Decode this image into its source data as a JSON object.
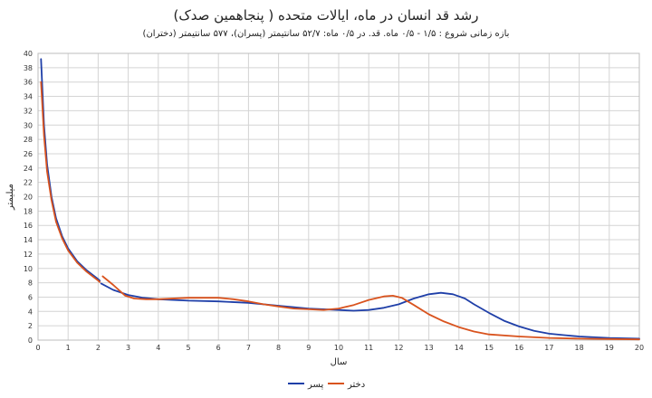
{
  "chart_data": {
    "type": "line",
    "title": "رشد قد انسان در ماه، ایالات متحده ( پنجاهمین صدک)",
    "subtitle": "بازه زمانی شروع : ۱/۵ - ۰/۵ ماه. قد. در ۰/۵ ماه: ۵۲/۷ سانتیمتر (پسران)، ۵۷۷ سانتیمتر (دختران)",
    "xlabel": "سال",
    "ylabel": "میلیمتر",
    "xlim": [
      0,
      20
    ],
    "ylim": [
      0,
      40
    ],
    "x_ticks": [
      "0",
      "1",
      "2",
      "3",
      "4",
      "5",
      "6",
      "7",
      "8",
      "9",
      "10",
      "11",
      "12",
      "13",
      "14",
      "15",
      "16",
      "17",
      "18",
      "19",
      "20"
    ],
    "y_ticks": [
      "0",
      "2",
      "4",
      "6",
      "8",
      "10",
      "12",
      "14",
      "16",
      "18",
      "20",
      "22",
      "24",
      "26",
      "28",
      "30",
      "32",
      "34",
      "36",
      "38",
      "40"
    ],
    "grid": true,
    "legend_position": "bottom",
    "series": [
      {
        "name": "پسر",
        "color": "#1f3fa8",
        "segments": [
          [
            [
              0.1,
              39.2
            ],
            [
              0.2,
              30.0
            ],
            [
              0.3,
              24.5
            ],
            [
              0.45,
              20.0
            ],
            [
              0.6,
              17.0
            ],
            [
              0.8,
              14.5
            ],
            [
              1.0,
              12.8
            ],
            [
              1.3,
              11.0
            ],
            [
              1.6,
              9.8
            ],
            [
              2.0,
              8.5
            ],
            [
              2.05,
              8.3
            ]
          ],
          [
            [
              2.1,
              7.9
            ],
            [
              2.5,
              7.0
            ],
            [
              3.0,
              6.3
            ],
            [
              3.5,
              5.9
            ],
            [
              4.0,
              5.7
            ],
            [
              5.0,
              5.5
            ],
            [
              6.0,
              5.4
            ],
            [
              7.0,
              5.2
            ],
            [
              8.0,
              4.8
            ],
            [
              9.0,
              4.4
            ],
            [
              10.0,
              4.2
            ],
            [
              10.5,
              4.1
            ],
            [
              11.0,
              4.2
            ],
            [
              11.5,
              4.5
            ],
            [
              12.0,
              5.0
            ],
            [
              12.5,
              5.8
            ],
            [
              13.0,
              6.4
            ],
            [
              13.4,
              6.6
            ],
            [
              13.8,
              6.4
            ],
            [
              14.2,
              5.8
            ],
            [
              14.5,
              5.0
            ],
            [
              15.0,
              3.8
            ],
            [
              15.5,
              2.7
            ],
            [
              16.0,
              1.9
            ],
            [
              16.5,
              1.3
            ],
            [
              17.0,
              0.9
            ],
            [
              17.5,
              0.7
            ],
            [
              18.0,
              0.5
            ],
            [
              19.0,
              0.3
            ],
            [
              20.0,
              0.2
            ]
          ]
        ]
      },
      {
        "name": "دختر",
        "color": "#d9531e",
        "segments": [
          [
            [
              0.1,
              36.0
            ],
            [
              0.2,
              28.5
            ],
            [
              0.3,
              23.5
            ],
            [
              0.45,
              19.5
            ],
            [
              0.6,
              16.5
            ],
            [
              0.8,
              14.2
            ],
            [
              1.0,
              12.5
            ],
            [
              1.3,
              10.8
            ],
            [
              1.6,
              9.6
            ],
            [
              2.0,
              8.3
            ],
            [
              2.05,
              8.1
            ]
          ],
          [
            [
              2.15,
              8.9
            ],
            [
              2.5,
              7.7
            ],
            [
              2.9,
              6.2
            ],
            [
              3.2,
              5.8
            ],
            [
              3.6,
              5.7
            ],
            [
              4.0,
              5.7
            ],
            [
              5.0,
              5.9
            ],
            [
              6.0,
              5.9
            ],
            [
              6.5,
              5.7
            ],
            [
              7.0,
              5.4
            ],
            [
              7.5,
              5.0
            ],
            [
              8.0,
              4.7
            ],
            [
              8.5,
              4.4
            ],
            [
              9.0,
              4.3
            ],
            [
              9.5,
              4.2
            ],
            [
              10.0,
              4.4
            ],
            [
              10.5,
              4.9
            ],
            [
              11.0,
              5.6
            ],
            [
              11.5,
              6.1
            ],
            [
              11.8,
              6.2
            ],
            [
              12.1,
              5.9
            ],
            [
              12.5,
              4.9
            ],
            [
              13.0,
              3.6
            ],
            [
              13.5,
              2.6
            ],
            [
              14.0,
              1.8
            ],
            [
              14.5,
              1.2
            ],
            [
              15.0,
              0.8
            ],
            [
              16.0,
              0.5
            ],
            [
              17.0,
              0.3
            ],
            [
              18.0,
              0.2
            ],
            [
              19.0,
              0.15
            ],
            [
              20.0,
              0.1
            ]
          ]
        ]
      }
    ]
  }
}
